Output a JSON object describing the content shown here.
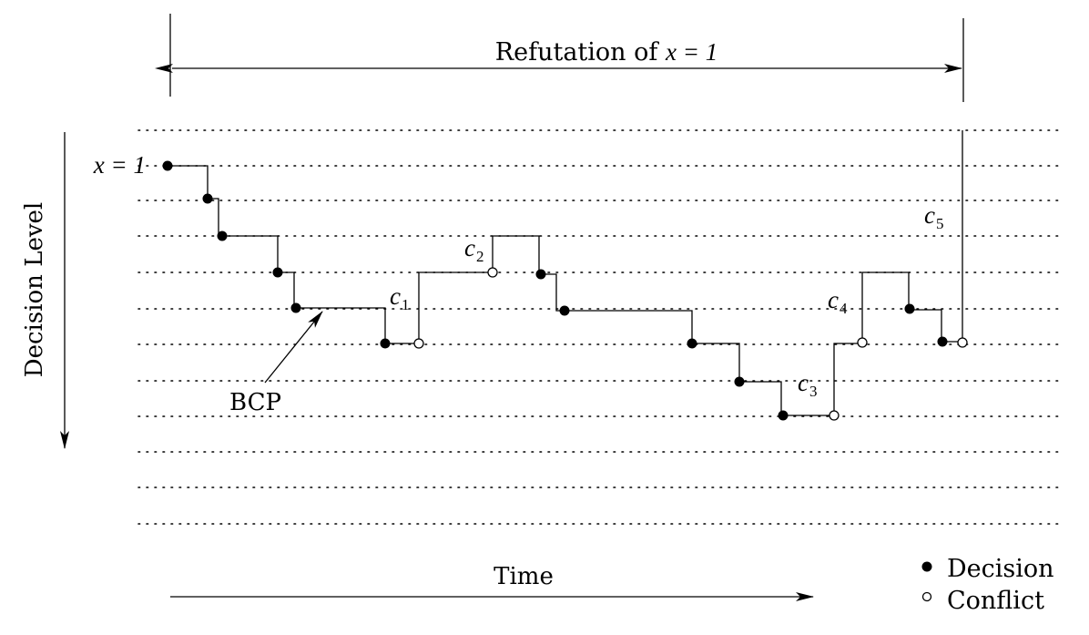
{
  "labels": {
    "refutation": "Refutation of x = 1",
    "refutation_prefix": "Refutation of ",
    "refutation_math": "x = 1",
    "start": "x = 1",
    "decision_level": "Decision Level",
    "time": "Time",
    "bcp": "BCP"
  },
  "legend": {
    "decision": "Decision",
    "conflict": "Conflict"
  },
  "conflicts": [
    {
      "var": "c",
      "sub": "1"
    },
    {
      "var": "c",
      "sub": "2"
    },
    {
      "var": "c",
      "sub": "3"
    },
    {
      "var": "c",
      "sub": "4"
    },
    {
      "var": "c",
      "sub": "5"
    }
  ],
  "colors": {
    "ink": "#000000",
    "background": "#ffffff"
  }
}
